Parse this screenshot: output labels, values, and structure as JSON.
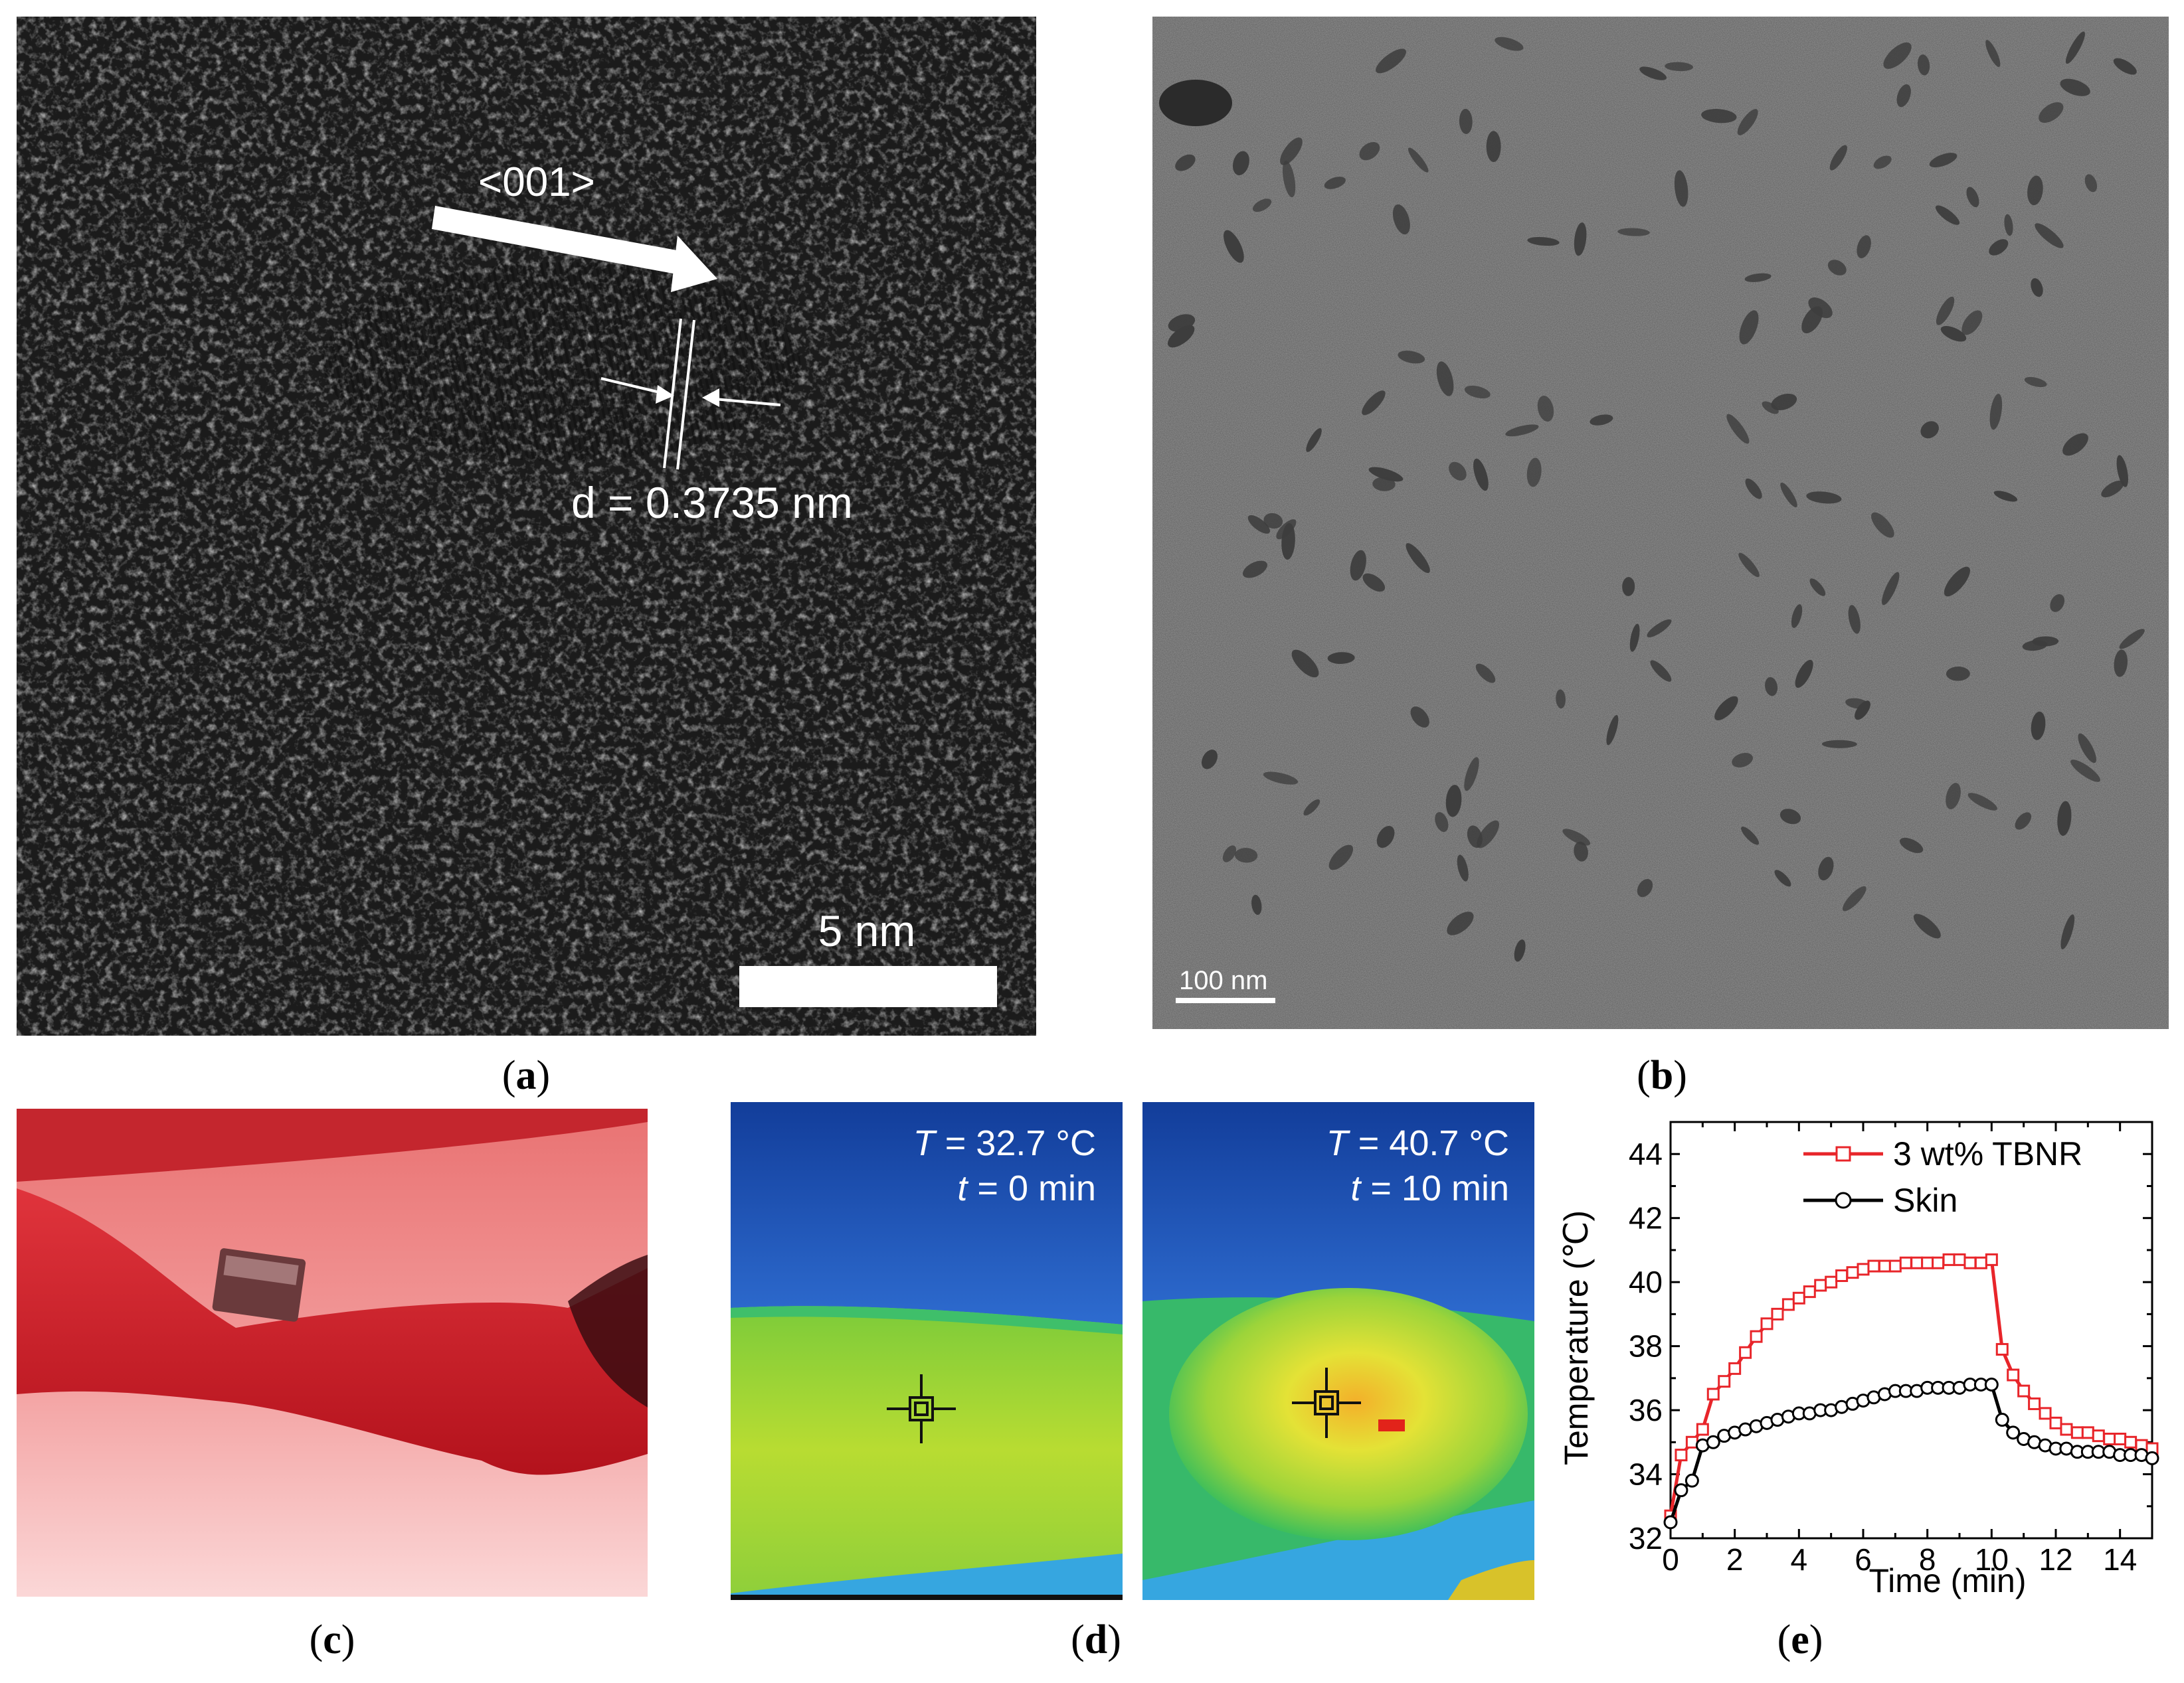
{
  "panels": {
    "a": {
      "caption_letter": "a",
      "direction_label": "<001>",
      "d_spacing_label": "d = 0.3735 nm",
      "scale_bar_label": "5 nm"
    },
    "b": {
      "caption_letter": "b",
      "scale_bar_label": "100 nm"
    },
    "c": {
      "caption_letter": "c"
    },
    "d": {
      "caption_letter": "d",
      "left": {
        "T_symbol": "T",
        "T_value": " = 32.7 °C",
        "t_symbol": "t",
        "t_value": " = 0 min"
      },
      "right": {
        "T_symbol": "T",
        "T_value": " = 40.7 °C",
        "t_symbol": "t",
        "t_value": " = 10 min"
      }
    },
    "e": {
      "caption_letter": "e"
    }
  },
  "colors": {
    "tbnr_series": "#e8252a",
    "skin_series": "#000000",
    "tem_dark": "#161616",
    "tem_gray": "#8f8f8f",
    "thermal_blue": "#1f4fb8",
    "thermal_green": "#9cd43a",
    "thermal_yellow": "#e8e23a",
    "photo_red": "#d8343c"
  },
  "chart_data": {
    "type": "line",
    "title": "",
    "xlabel": "Time (min)",
    "ylabel": "Temperature (℃)",
    "xlim": [
      0,
      15
    ],
    "ylim": [
      32,
      45
    ],
    "xticks": [
      "0",
      "2",
      "4",
      "6",
      "8",
      "10",
      "12",
      "14"
    ],
    "yticks": [
      "32",
      "34",
      "36",
      "38",
      "40",
      "42",
      "44"
    ],
    "grid": false,
    "legend_position": "top-right",
    "series": [
      {
        "name": "3 wt% TBNR",
        "marker": "square",
        "x": [
          0,
          0.33,
          0.67,
          1,
          1.33,
          1.67,
          2,
          2.33,
          2.67,
          3,
          3.33,
          3.67,
          4,
          4.33,
          4.67,
          5,
          5.33,
          5.67,
          6,
          6.33,
          6.67,
          7,
          7.33,
          7.67,
          8,
          8.33,
          8.67,
          9,
          9.33,
          9.67,
          10,
          10.33,
          10.67,
          11,
          11.33,
          11.67,
          12,
          12.33,
          12.67,
          13,
          13.33,
          13.67,
          14,
          14.33,
          14.67,
          15
        ],
        "y": [
          32.7,
          34.6,
          35.0,
          35.4,
          36.5,
          36.9,
          37.3,
          37.8,
          38.3,
          38.7,
          39.0,
          39.3,
          39.5,
          39.7,
          39.9,
          40.0,
          40.2,
          40.3,
          40.4,
          40.5,
          40.5,
          40.5,
          40.6,
          40.6,
          40.6,
          40.6,
          40.7,
          40.7,
          40.6,
          40.6,
          40.7,
          37.9,
          37.1,
          36.6,
          36.2,
          35.9,
          35.6,
          35.4,
          35.3,
          35.3,
          35.2,
          35.1,
          35.1,
          35.0,
          34.9,
          34.8
        ]
      },
      {
        "name": "Skin",
        "marker": "circle",
        "x": [
          0,
          0.33,
          0.67,
          1,
          1.33,
          1.67,
          2,
          2.33,
          2.67,
          3,
          3.33,
          3.67,
          4,
          4.33,
          4.67,
          5,
          5.33,
          5.67,
          6,
          6.33,
          6.67,
          7,
          7.33,
          7.67,
          8,
          8.33,
          8.67,
          9,
          9.33,
          9.67,
          10,
          10.33,
          10.67,
          11,
          11.33,
          11.67,
          12,
          12.33,
          12.67,
          13,
          13.33,
          13.67,
          14,
          14.33,
          14.67,
          15
        ],
        "y": [
          32.5,
          33.5,
          33.8,
          34.9,
          35.0,
          35.2,
          35.3,
          35.4,
          35.5,
          35.6,
          35.7,
          35.8,
          35.9,
          35.9,
          36.0,
          36.0,
          36.1,
          36.2,
          36.3,
          36.4,
          36.5,
          36.6,
          36.6,
          36.6,
          36.7,
          36.7,
          36.7,
          36.7,
          36.8,
          36.8,
          36.8,
          35.7,
          35.3,
          35.1,
          35.0,
          34.9,
          34.8,
          34.8,
          34.7,
          34.7,
          34.7,
          34.7,
          34.6,
          34.6,
          34.6,
          34.5
        ]
      }
    ]
  }
}
